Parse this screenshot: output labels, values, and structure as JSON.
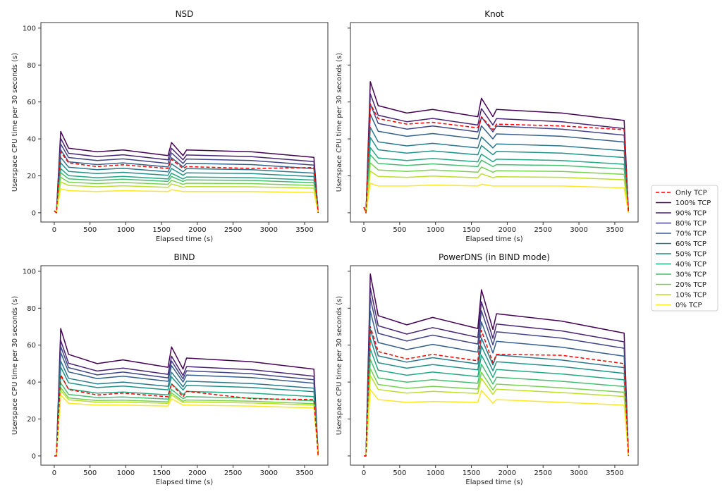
{
  "chart_data": {
    "legend": {
      "placement": "right",
      "entries": [
        "Only TCP",
        "100% TCP",
        "90% TCP",
        "80% TCP",
        "70% TCP",
        "60% TCP",
        "50% TCP",
        "40% TCP",
        "30% TCP",
        "20% TCP",
        "10% TCP",
        "0% TCP"
      ]
    },
    "colors": {
      "Only TCP": "#ff0000",
      "100% TCP": "#440154",
      "90% TCP": "#482475",
      "80% TCP": "#414487",
      "70% TCP": "#355f8d",
      "60% TCP": "#2a788e",
      "50% TCP": "#21918c",
      "40% TCP": "#22a884",
      "30% TCP": "#44bf70",
      "20% TCP": "#7ad151",
      "10% TCP": "#bddf26",
      "0% TCP": "#fde725"
    },
    "x": [
      0,
      30,
      90,
      200,
      600,
      960,
      1590,
      1640,
      1800,
      1850,
      2760,
      3630,
      3690
    ],
    "xticks": [
      0,
      500,
      1000,
      1500,
      2000,
      2500,
      3000,
      3500
    ],
    "yticks": [
      0,
      20,
      40,
      60,
      80,
      100
    ],
    "xlim": [
      -187,
      3825
    ],
    "ylim": [
      -5,
      103
    ],
    "shared_y": true,
    "grid": false,
    "plots": [
      {
        "type": "line",
        "title": "NSD",
        "xlabel": "Elapsed time (s)",
        "ylabel": "Userspace CPU time per 30 seconds (s)",
        "series": [
          {
            "name": "100% TCP",
            "values": [
              1,
              0,
              44,
              35,
              33,
              34,
              31,
              38,
              31,
              34,
              33,
              30,
              0
            ]
          },
          {
            "name": "90% TCP",
            "values": [
              1,
              0,
              40.3,
              32.2,
              30.4,
              31.4,
              28.7,
              34.9,
              28.7,
              31.3,
              30.4,
              27.7,
              0
            ]
          },
          {
            "name": "80% TCP",
            "values": [
              1,
              0,
              37.2,
              29.9,
              28.3,
              29.2,
              26.7,
              32.4,
              26.7,
              29.1,
              28.3,
              25.8,
              0
            ]
          },
          {
            "name": "70% TCP",
            "values": [
              1,
              0,
              34.1,
              27.6,
              26.1,
              27,
              24.8,
              29.8,
              24.8,
              26.8,
              26.1,
              23.9,
              0
            ]
          },
          {
            "name": "60% TCP",
            "values": [
              1,
              0,
              30,
              24.7,
              23.3,
              24.1,
              22.2,
              26.5,
              22.2,
              23.9,
              23.3,
              21.5,
              0
            ]
          },
          {
            "name": "50% TCP",
            "values": [
              1,
              0,
              27,
              22.4,
              21.2,
              21.9,
              20.3,
              24,
              20.3,
              21.6,
              21.2,
              19.6,
              0
            ]
          },
          {
            "name": "40% TCP",
            "values": [
              1,
              0,
              23.9,
              20.1,
              19,
              19.7,
              18.3,
              21.4,
              18.3,
              19.4,
              19,
              17.7,
              0
            ]
          },
          {
            "name": "30% TCP",
            "values": [
              1,
              0,
              21.7,
              18.4,
              17.5,
              18.2,
              17,
              19.6,
              17,
              17.8,
              17.5,
              16.3,
              0
            ]
          },
          {
            "name": "20% TCP",
            "values": [
              1,
              0,
              19.2,
              16.6,
              15.8,
              16.4,
              15.4,
              17.6,
              15.4,
              16,
              15.8,
              14.8,
              0
            ]
          },
          {
            "name": "10% TCP",
            "values": [
              1,
              0,
              16.7,
              14.8,
              14.1,
              14.6,
              13.8,
              15.6,
              13.8,
              14.2,
              14.1,
              13.3,
              0
            ]
          },
          {
            "name": "0% TCP",
            "values": [
              1,
              0,
              13,
              12,
              11.5,
              12,
              11.5,
              12.5,
              11.5,
              11.5,
              11.5,
              11,
              0
            ]
          },
          {
            "name": "Only TCP",
            "values": [
              1,
              0,
              33,
              27,
              25,
              26,
              24,
              29,
              24,
              25,
              24,
              24.5,
              0
            ]
          }
        ]
      },
      {
        "type": "line",
        "title": "Knot",
        "xlabel": "Elapsed time (s)",
        "ylabel": "Userspace CPU time per 30 seconds (s)",
        "series": [
          {
            "name": "100% TCP",
            "values": [
              3,
              0,
              71,
              58,
              54,
              56,
              52,
              62,
              52,
              56,
              54,
              50,
              0
            ]
          },
          {
            "name": "90% TCP",
            "values": [
              3,
              0,
              64.4,
              52.8,
              49.3,
              51.1,
              47.5,
              56.4,
              47.5,
              51,
              49.3,
              45.6,
              0
            ]
          },
          {
            "name": "80% TCP",
            "values": [
              3,
              0,
              58.9,
              48.4,
              45.3,
              47,
              43.8,
              51.8,
              43.8,
              46.9,
              45.3,
              42,
              0
            ]
          },
          {
            "name": "70% TCP",
            "values": [
              3,
              0,
              53.4,
              44.1,
              41.4,
              42.9,
              40,
              47.1,
              40,
              42.7,
              41.4,
              38.3,
              0
            ]
          },
          {
            "name": "60% TCP",
            "values": [
              3,
              0,
              46.3,
              38.4,
              36.2,
              37.6,
              35.1,
              41.1,
              35.1,
              37.3,
              36.2,
              33.6,
              0
            ]
          },
          {
            "name": "50% TCP",
            "values": [
              3,
              0,
              40.8,
              34.1,
              32.3,
              33.5,
              31.4,
              36.4,
              31.4,
              33.2,
              32.3,
              29.9,
              0
            ]
          },
          {
            "name": "40% TCP",
            "values": [
              3,
              0,
              35.3,
              29.7,
              28.3,
              29.4,
              27.6,
              31.8,
              27.6,
              29,
              28.3,
              26.3,
              0
            ]
          },
          {
            "name": "30% TCP",
            "values": [
              3,
              0,
              31.4,
              26.7,
              25.6,
              26.5,
              25,
              28.5,
              25,
              26.1,
              25.6,
              23.7,
              0
            ]
          },
          {
            "name": "20% TCP",
            "values": [
              3,
              0,
              27,
              23.2,
              22.4,
              23.2,
              22,
              24.8,
              22,
              22.8,
              22.4,
              20.8,
              0
            ]
          },
          {
            "name": "10% TCP",
            "values": [
              3,
              0,
              22.6,
              19.7,
              19.2,
              19.9,
              19,
              21.1,
              19,
              19.5,
              19.2,
              17.9,
              0
            ]
          },
          {
            "name": "0% TCP",
            "values": [
              3,
              0,
              16,
              14.5,
              14.5,
              15,
              14.5,
              15.5,
              14.5,
              14.5,
              14.5,
              13.5,
              0
            ]
          },
          {
            "name": "Only TCP",
            "values": [
              3,
              0,
              59,
              51,
              48,
              49,
              46,
              52,
              45,
              48,
              47,
              45,
              0
            ]
          }
        ]
      },
      {
        "type": "line",
        "title": "BIND",
        "xlabel": "Elapsed time (s)",
        "ylabel": "Userspace CPU time per 30 seconds (s)",
        "series": [
          {
            "name": "100% TCP",
            "values": [
              0,
              0,
              69,
              55,
              50,
              52,
              48,
              59,
              47,
              53,
              51,
              47,
              0
            ]
          },
          {
            "name": "90% TCP",
            "values": [
              0,
              0,
              62.5,
              50.2,
              46,
              47.6,
              44.2,
              54,
              43.5,
              48.4,
              46.7,
              43.2,
              0
            ]
          },
          {
            "name": "80% TCP",
            "values": [
              0,
              0,
              59.3,
              47.8,
              43.9,
              45.4,
              42.3,
              51.4,
              41.7,
              46.1,
              44.5,
              41.3,
              0
            ]
          },
          {
            "name": "70% TCP",
            "values": [
              0,
              0,
              56,
              45.5,
              41.9,
              43.2,
              40.4,
              48.9,
              40,
              43.8,
              42.4,
              39.4,
              0
            ]
          },
          {
            "name": "60% TCP",
            "values": [
              0,
              0,
              51.4,
              42,
              39,
              40,
              37.7,
              45.3,
              37.4,
              40.5,
              39.2,
              36.7,
              0
            ]
          },
          {
            "name": "50% TCP",
            "values": [
              0,
              0,
              48.1,
              39.6,
              37,
              37.8,
              35.8,
              42.8,
              35.7,
              38.2,
              37.1,
              34.8,
              0
            ]
          },
          {
            "name": "40% TCP",
            "values": [
              0,
              0,
              43.4,
              36.2,
              34,
              34.6,
              33.1,
              39.1,
              33.2,
              34.9,
              34,
              32.1,
              0
            ]
          },
          {
            "name": "30% TCP",
            "values": [
              0,
              0,
              39.5,
              33.3,
              31.6,
              31.9,
              30.8,
              36,
              31,
              32.1,
              31.3,
              29.8,
              0
            ]
          },
          {
            "name": "20% TCP",
            "values": [
              0,
              0,
              37,
              31.4,
              30,
              30.2,
              29.3,
              34.1,
              29.6,
              30.3,
              29.6,
              28.3,
              0
            ]
          },
          {
            "name": "10% TCP",
            "values": [
              0,
              0,
              35.5,
              30.4,
              29.1,
              29.2,
              28.5,
              33,
              28.9,
              29.3,
              28.7,
              27.5,
              0
            ]
          },
          {
            "name": "0% TCP",
            "values": [
              0,
              0,
              33,
              28.5,
              27.5,
              27.5,
              27,
              31,
              27.5,
              27.5,
              27,
              26,
              0
            ]
          },
          {
            "name": "Only TCP",
            "values": [
              0,
              0,
              44,
              36,
              33,
              34,
              32,
              39,
              32,
              35,
              31,
              30.5,
              0
            ]
          }
        ]
      },
      {
        "type": "line",
        "title": "PowerDNS (in BIND mode)",
        "xlabel": "Elapsed time (s)",
        "ylabel": "Userspace CPU time per 30 seconds (s)",
        "series": [
          {
            "name": "100% TCP",
            "values": [
              0,
              0,
              98.5,
              76,
              71,
              75,
              69,
              90,
              68.5,
              77,
              73,
              66.5,
              0
            ]
          },
          {
            "name": "90% TCP",
            "values": [
              0,
              0,
              91,
              70.5,
              66,
              69.5,
              64.2,
              83.5,
              63.7,
              71.4,
              67.7,
              61.8,
              0
            ]
          },
          {
            "name": "80% TCP",
            "values": [
              0,
              0,
              85.4,
              66.4,
              62.2,
              65.4,
              60.6,
              78.6,
              60.1,
              67.2,
              63.8,
              58.3,
              0
            ]
          },
          {
            "name": "70% TCP",
            "values": [
              0,
              0,
              78.5,
              61.4,
              57.6,
              60.4,
              56.2,
              72.6,
              55.7,
              62.1,
              58.9,
              54,
              0
            ]
          },
          {
            "name": "60% TCP",
            "values": [
              0,
              0,
              68.5,
              54.2,
              50.8,
              53.2,
              49.8,
              63.8,
              49.3,
              54.7,
              51.9,
              47.8,
              0
            ]
          },
          {
            "name": "50% TCP",
            "values": [
              0,
              0,
              63.5,
              50.5,
              47.5,
              49.5,
              46.6,
              59.5,
              46.1,
              51,
              48.4,
              44.7,
              0
            ]
          },
          {
            "name": "40% TCP",
            "values": [
              0,
              0,
              57.9,
              46.4,
              43.7,
              45.4,
              43,
              54.6,
              42.5,
              46.8,
              44.4,
              41.2,
              0
            ]
          },
          {
            "name": "30% TCP",
            "values": [
              0,
              0,
              52.3,
              42.3,
              39.9,
              41.3,
              39.4,
              49.7,
              38.9,
              42.6,
              40.4,
              37.6,
              0
            ]
          },
          {
            "name": "20% TCP",
            "values": [
              0,
              0,
              47.3,
              38.7,
              36.6,
              37.7,
              36.2,
              45.3,
              35.7,
              38.9,
              36.9,
              34.5,
              0
            ]
          },
          {
            "name": "10% TCP",
            "values": [
              0,
              0,
              43.5,
              36,
              34,
              35,
              33.8,
              42,
              33.3,
              36.1,
              34.3,
              32.2,
              0
            ]
          },
          {
            "name": "0% TCP",
            "values": [
              0,
              0,
              36,
              30.5,
              29,
              29.5,
              29,
              35.5,
              28.5,
              30.5,
              29,
              27.5,
              0
            ]
          },
          {
            "name": "Only TCP",
            "values": [
              0,
              0,
              70,
              56.5,
              52.5,
              55,
              51.5,
              68,
              50.5,
              55,
              54.5,
              50,
              0
            ]
          }
        ]
      }
    ]
  }
}
